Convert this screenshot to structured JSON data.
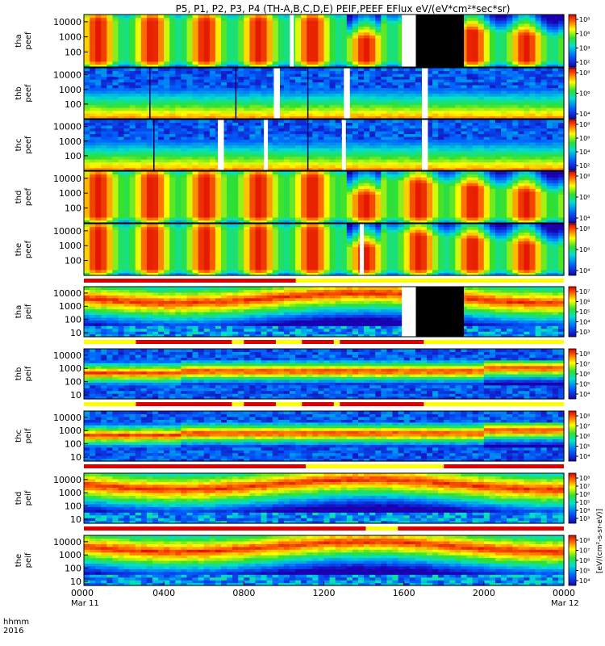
{
  "title": "P5, P1, P2, P3, P4 (TH-A,B,C,D,E) PEIF,PEEF EFlux eV/(eV*cm²*sec*sr)",
  "colorbar_unit": "[eV/(cm²-s-sr-eV)]",
  "colors": {
    "bar_red": "#dd0000",
    "bar_yellow": "#ffff00",
    "gap_black": "#000000",
    "gap_white": "#ffffff"
  },
  "chart_data": {
    "type": "heatmap",
    "x_axis": {
      "label_line1": "hhmm",
      "label_line2": "2016",
      "range_hours": [
        0,
        24
      ],
      "ticks": [
        {
          "h": 0,
          "label": "0000",
          "sub": "Mar 11"
        },
        {
          "h": 4,
          "label": "0400",
          "sub": ""
        },
        {
          "h": 8,
          "label": "0800",
          "sub": ""
        },
        {
          "h": 12,
          "label": "1200",
          "sub": ""
        },
        {
          "h": 16,
          "label": "1600",
          "sub": ""
        },
        {
          "h": 20,
          "label": "2000",
          "sub": ""
        },
        {
          "h": 24,
          "label": "0000",
          "sub": "Mar 12"
        }
      ]
    },
    "y_scale": "log",
    "panels": [
      {
        "id": "tha-peef",
        "l1": "tha",
        "l2": "peef",
        "kind": "electron",
        "ymin": 10,
        "ymax": 30000,
        "yticks": [
          100,
          1000,
          10000
        ],
        "ytick_labels": [
          "100",
          "1000",
          "10000"
        ],
        "cbar_ticks": [
          "10⁸",
          "10⁶",
          "10⁴",
          "10²"
        ],
        "base": 0.72,
        "var": 0.25,
        "gaps_white": [
          [
            10.3,
            10.5
          ],
          [
            15.9,
            16.6
          ]
        ],
        "gaps_black": [
          [
            16.6,
            19.0
          ]
        ],
        "spikes": []
      },
      {
        "id": "thb-peef",
        "l1": "thb",
        "l2": "peef",
        "kind": "lowe",
        "ymin": 10,
        "ymax": 30000,
        "yticks": [
          100,
          1000,
          10000
        ],
        "ytick_labels": [
          "100",
          "1000",
          "10000"
        ],
        "cbar_ticks": [
          "10⁸",
          "10⁶",
          "10⁴"
        ],
        "base": 0.45,
        "var": 0.1,
        "gaps_white": [
          [
            9.5,
            9.8
          ],
          [
            13.0,
            13.3
          ],
          [
            16.9,
            17.2
          ]
        ],
        "gaps_black": [],
        "spikes": [
          3.3,
          7.6,
          11.2
        ]
      },
      {
        "id": "thc-peef",
        "l1": "thc",
        "l2": "peef",
        "kind": "lowe",
        "ymin": 10,
        "ymax": 30000,
        "yticks": [
          100,
          1000,
          10000
        ],
        "ytick_labels": [
          "100",
          "1000",
          "10000"
        ],
        "cbar_ticks": [
          "10⁸",
          "10⁶",
          "10⁴",
          "10²"
        ],
        "base": 0.5,
        "var": 0.1,
        "gaps_white": [
          [
            6.7,
            7.0
          ],
          [
            9.0,
            9.2
          ],
          [
            12.9,
            13.1
          ],
          [
            16.9,
            17.2
          ]
        ],
        "gaps_black": [],
        "spikes": [
          3.5,
          11.2
        ]
      },
      {
        "id": "thd-peef",
        "l1": "thd",
        "l2": "peef",
        "kind": "electron",
        "ymin": 10,
        "ymax": 30000,
        "yticks": [
          100,
          1000,
          10000
        ],
        "ytick_labels": [
          "100",
          "1000",
          "10000"
        ],
        "cbar_ticks": [
          "10⁸",
          "10⁶",
          "10⁴"
        ],
        "base": 0.75,
        "var": 0.22,
        "gaps_white": [],
        "gaps_black": [],
        "spikes": []
      },
      {
        "id": "the-peef",
        "l1": "the",
        "l2": "peef",
        "kind": "electron",
        "ymin": 10,
        "ymax": 30000,
        "yticks": [
          100,
          1000,
          10000
        ],
        "ytick_labels": [
          "100",
          "1000",
          "10000"
        ],
        "cbar_ticks": [
          "10⁸",
          "10⁶",
          "10⁴"
        ],
        "base": 0.72,
        "var": 0.25,
        "gaps_white": [
          [
            13.8,
            14.0
          ]
        ],
        "gaps_black": [],
        "spikes": []
      },
      {
        "id": "tha-peif",
        "l1": "tha",
        "l2": "peif",
        "kind": "ion",
        "ymin": 5,
        "ymax": 30000,
        "yticks": [
          10,
          100,
          1000,
          10000
        ],
        "ytick_labels": [
          "10",
          "100",
          "1000",
          "10000"
        ],
        "cbar_ticks": [
          "10⁷",
          "10⁶",
          "10⁵",
          "10⁴",
          "10³"
        ],
        "base": 0.6,
        "var": 0.2,
        "gaps_white": [
          [
            15.9,
            16.6
          ]
        ],
        "gaps_black": [
          [
            16.6,
            19.0
          ]
        ],
        "spikes": []
      },
      {
        "id": "thb-peif",
        "l1": "thb",
        "l2": "peif",
        "kind": "band",
        "ymin": 5,
        "ymax": 30000,
        "yticks": [
          10,
          100,
          1000,
          10000
        ],
        "ytick_labels": [
          "10",
          "100",
          "1000",
          "10000"
        ],
        "cbar_ticks": [
          "10⁸",
          "10⁷",
          "10⁶",
          "10⁵",
          "10⁴"
        ],
        "base": 0.5,
        "var": 0.1,
        "gaps_white": [],
        "gaps_black": [],
        "spikes": []
      },
      {
        "id": "thc-peif",
        "l1": "thc",
        "l2": "peif",
        "kind": "band",
        "ymin": 5,
        "ymax": 30000,
        "yticks": [
          10,
          100,
          1000,
          10000
        ],
        "ytick_labels": [
          "10",
          "100",
          "1000",
          "10000"
        ],
        "cbar_ticks": [
          "10⁸",
          "10⁷",
          "10⁶",
          "10⁵",
          "10⁴"
        ],
        "base": 0.5,
        "var": 0.1,
        "gaps_white": [],
        "gaps_black": [],
        "spikes": []
      },
      {
        "id": "thd-peif",
        "l1": "thd",
        "l2": "peif",
        "kind": "ion",
        "ymin": 5,
        "ymax": 30000,
        "yticks": [
          10,
          100,
          1000,
          10000
        ],
        "ytick_labels": [
          "10",
          "100",
          "1000",
          "10000"
        ],
        "cbar_ticks": [
          "10⁸",
          "10⁷",
          "10⁶",
          "10⁵",
          "10⁴",
          "10³"
        ],
        "base": 0.55,
        "var": 0.2,
        "gaps_white": [],
        "gaps_black": [],
        "spikes": []
      },
      {
        "id": "the-peif",
        "l1": "the",
        "l2": "peif",
        "kind": "ion",
        "ymin": 5,
        "ymax": 30000,
        "yticks": [
          10,
          100,
          1000,
          10000
        ],
        "ytick_labels": [
          "10",
          "100",
          "1000",
          "10000"
        ],
        "cbar_ticks": [
          "10⁸",
          "10⁷",
          "10⁶",
          "10⁵",
          "10⁴"
        ],
        "base": 0.55,
        "var": 0.2,
        "gaps_white": [],
        "gaps_black": [],
        "spikes": []
      }
    ],
    "mode_bars": [
      {
        "after_panel": 4,
        "segments": [
          [
            0,
            10.6,
            "red"
          ],
          [
            10.6,
            24,
            "yellow"
          ]
        ]
      },
      {
        "after_panel": 5,
        "segments": [
          [
            0,
            2.6,
            "yellow"
          ],
          [
            2.6,
            7.4,
            "red"
          ],
          [
            7.4,
            8.0,
            "yellow"
          ],
          [
            8.0,
            9.6,
            "red"
          ],
          [
            9.6,
            10.9,
            "yellow"
          ],
          [
            10.9,
            12.5,
            "red"
          ],
          [
            12.5,
            12.8,
            "yellow"
          ],
          [
            12.8,
            17.0,
            "red"
          ],
          [
            17.0,
            24,
            "yellow"
          ]
        ]
      },
      {
        "after_panel": 6,
        "segments": [
          [
            0,
            2.6,
            "yellow"
          ],
          [
            2.6,
            7.4,
            "red"
          ],
          [
            7.4,
            8.0,
            "yellow"
          ],
          [
            8.0,
            9.6,
            "red"
          ],
          [
            9.6,
            10.9,
            "yellow"
          ],
          [
            10.9,
            12.5,
            "red"
          ],
          [
            12.5,
            12.8,
            "yellow"
          ],
          [
            12.8,
            17.0,
            "red"
          ],
          [
            17.0,
            24,
            "yellow"
          ]
        ]
      },
      {
        "after_panel": 7,
        "segments": [
          [
            0,
            11.1,
            "red"
          ],
          [
            11.1,
            18.0,
            "yellow"
          ],
          [
            18.0,
            24,
            "red"
          ]
        ]
      },
      {
        "after_panel": 8,
        "segments": [
          [
            0,
            14.1,
            "red"
          ],
          [
            14.1,
            15.7,
            "yellow"
          ],
          [
            15.7,
            24,
            "red"
          ]
        ]
      }
    ]
  }
}
